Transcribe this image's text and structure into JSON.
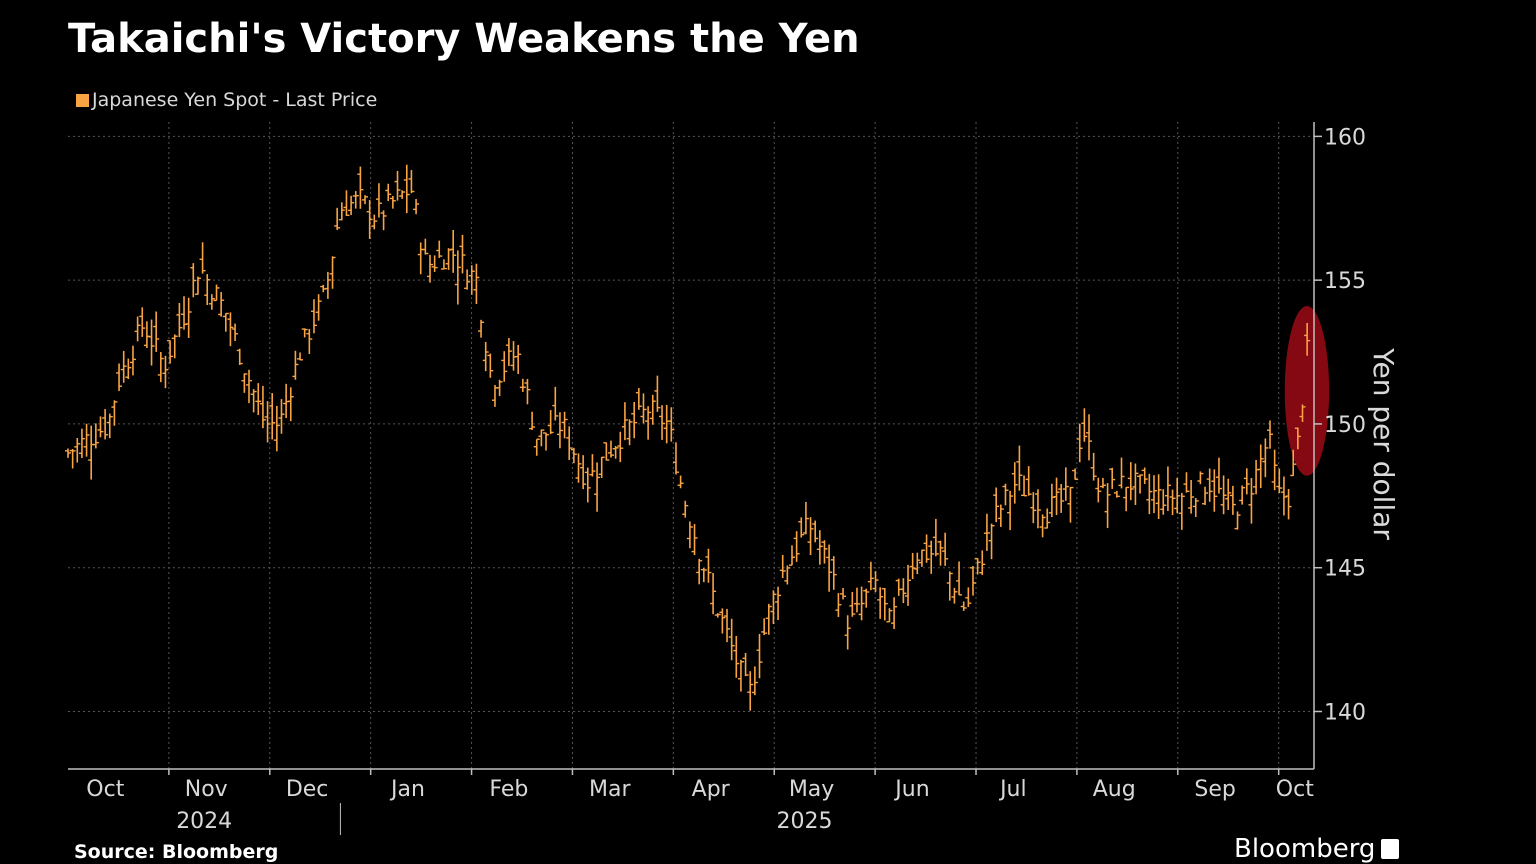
{
  "chart_data": {
    "type": "bar",
    "subtype": "ohlc",
    "title": "Takaichi's Victory Weakens the Yen",
    "legend": {
      "label": "Japanese Yen Spot - Last Price",
      "color": "#f9a444",
      "placement": "top-left"
    },
    "ylabel": "Yen per dollar",
    "ylim": [
      138,
      160.5
    ],
    "yticks": [
      140,
      145,
      150,
      155,
      160
    ],
    "grid": true,
    "xlim": [
      0,
      12.35
    ],
    "month_ticks": [
      "Oct",
      "Nov",
      "Dec",
      "Jan",
      "Feb",
      "Mar",
      "Apr",
      "May",
      "Jun",
      "Jul",
      "Aug",
      "Sep",
      "Oct"
    ],
    "year_labels": [
      {
        "label": "2024",
        "month_center": 1.35
      },
      {
        "label": "2025",
        "month_center": 7.3
      }
    ],
    "series_path": [
      [
        0.0,
        149.0
      ],
      [
        0.4,
        150.0
      ],
      [
        0.5,
        151.5
      ],
      [
        0.75,
        153.5
      ],
      [
        0.95,
        152.0
      ],
      [
        1.15,
        153.8
      ],
      [
        1.3,
        155.5
      ],
      [
        1.55,
        154.0
      ],
      [
        1.75,
        152.0
      ],
      [
        1.95,
        150.0
      ],
      [
        2.1,
        150.0
      ],
      [
        2.3,
        152.5
      ],
      [
        2.55,
        154.5
      ],
      [
        2.7,
        157.5
      ],
      [
        2.9,
        157.8
      ],
      [
        3.05,
        157.2
      ],
      [
        3.25,
        157.8
      ],
      [
        3.4,
        158.2
      ],
      [
        3.55,
        155.5
      ],
      [
        3.8,
        156.0
      ],
      [
        4.05,
        155.0
      ],
      [
        4.2,
        151.5
      ],
      [
        4.45,
        152.5
      ],
      [
        4.65,
        149.5
      ],
      [
        4.9,
        150.0
      ],
      [
        5.15,
        148.0
      ],
      [
        5.45,
        149.5
      ],
      [
        5.75,
        150.5
      ],
      [
        5.95,
        150.0
      ],
      [
        6.1,
        147.5
      ],
      [
        6.35,
        144.5
      ],
      [
        6.55,
        142.5
      ],
      [
        6.75,
        140.5
      ],
      [
        6.95,
        143.5
      ],
      [
        7.1,
        145.0
      ],
      [
        7.35,
        146.5
      ],
      [
        7.55,
        145.0
      ],
      [
        7.75,
        143.0
      ],
      [
        8.0,
        144.5
      ],
      [
        8.15,
        143.0
      ],
      [
        8.4,
        145.5
      ],
      [
        8.65,
        145.5
      ],
      [
        8.9,
        143.5
      ],
      [
        9.15,
        146.5
      ],
      [
        9.4,
        148.0
      ],
      [
        9.7,
        147.0
      ],
      [
        9.95,
        147.5
      ],
      [
        10.05,
        150.0
      ],
      [
        10.25,
        147.5
      ],
      [
        10.5,
        148.0
      ],
      [
        10.8,
        147.5
      ],
      [
        11.05,
        147.5
      ],
      [
        11.3,
        148.0
      ],
      [
        11.55,
        147.0
      ],
      [
        11.75,
        148.0
      ],
      [
        11.9,
        149.5
      ],
      [
        12.0,
        147.5
      ],
      [
        12.1,
        147.5
      ],
      [
        12.2,
        149.5
      ],
      [
        12.25,
        151.5
      ],
      [
        12.3,
        153.0
      ]
    ],
    "annotations": [
      {
        "type": "ellipse",
        "color": "#8b0a14",
        "x_center": 12.28,
        "y_center": 151.15,
        "x_halfwidth": 0.22,
        "y_halfwidth": 2.95
      }
    ],
    "source": "Source: Bloomberg",
    "brand": "Bloomberg"
  },
  "colors": {
    "background": "#000000",
    "series": "#f9a444",
    "grid": "#555555",
    "axis": "#bfbfbf",
    "text": "#ffffff",
    "annotation": "#8b0a14"
  }
}
